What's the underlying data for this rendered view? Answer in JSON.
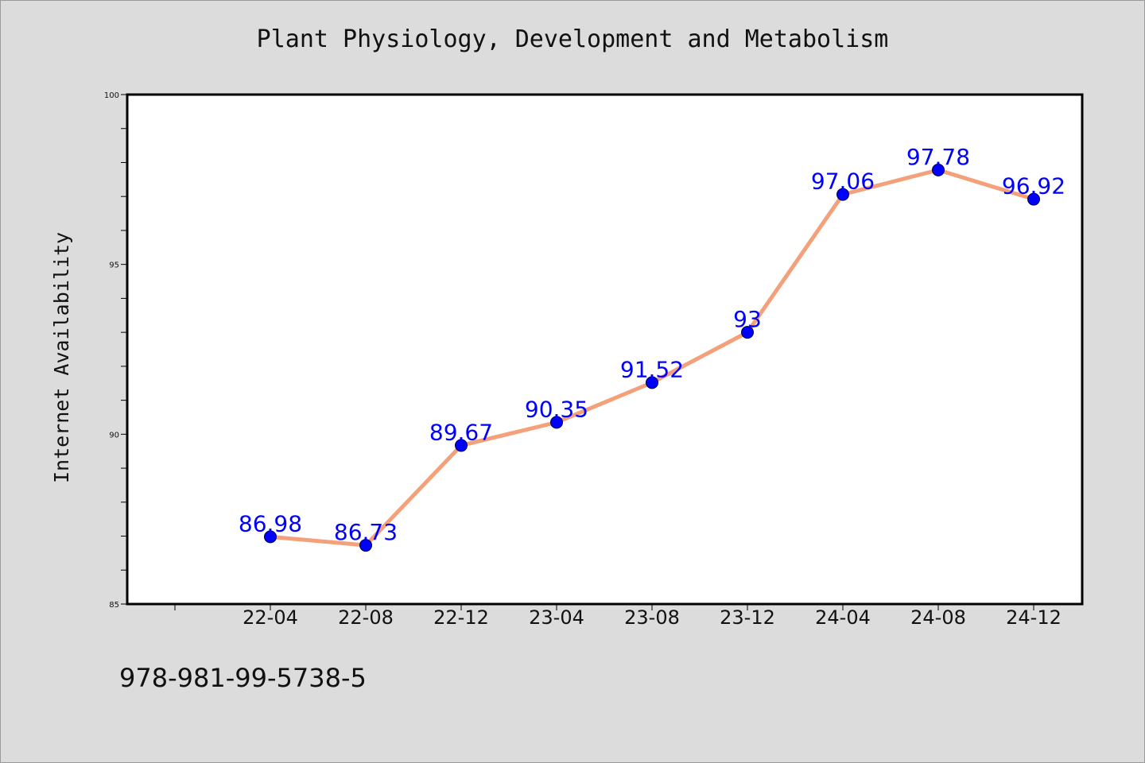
{
  "chart_data": {
    "type": "line",
    "title": "Plant Physiology, Development and Metabolism",
    "xlabel": "",
    "ylabel": "Internet Availability",
    "categories": [
      "22-04",
      "22-08",
      "22-12",
      "23-04",
      "23-08",
      "23-12",
      "24-04",
      "24-08",
      "24-12"
    ],
    "series": [
      {
        "values": [
          86.98,
          86.73,
          89.67,
          90.35,
          91.52,
          93,
          97.06,
          97.78,
          96.92
        ]
      }
    ],
    "data_labels": [
      "86.98",
      "86.73",
      "89.67",
      "90.35",
      "91.52",
      "93",
      "97.06",
      "97.78",
      "96.92"
    ],
    "ylim": [
      85,
      100
    ],
    "y_ticks": [
      85,
      90,
      95,
      100
    ],
    "y_tick_labels": [
      "85",
      "90",
      "95",
      "100"
    ],
    "grid": false,
    "legend": "none",
    "colors": {
      "line": "#f4a07a",
      "marker": "#0000ff",
      "label": "#0000ff",
      "background": "#dcdcdc",
      "plot_background": "#ffffff"
    }
  },
  "footer": {
    "code": "978-981-99-5738-5"
  }
}
